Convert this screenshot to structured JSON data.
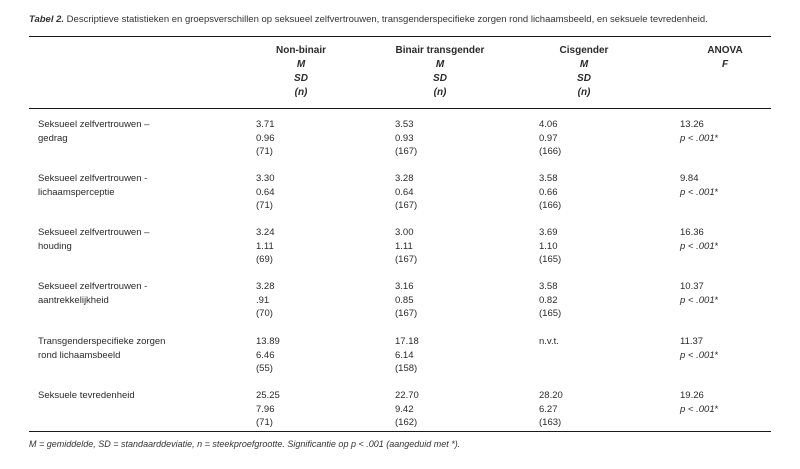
{
  "caption": {
    "label": "Tabel 2.",
    "text": " Descriptieve statistieken en groepsverschillen op seksueel zelfvertrouwen, transgenderspecifieke zorgen rond lichaamsbeeld, en seksuele tevredenheid."
  },
  "columns": [
    {
      "name": "Non-binair",
      "sub": [
        "M",
        "SD",
        "(n)"
      ]
    },
    {
      "name": "Binair transgender",
      "sub": [
        "M",
        "SD",
        "(n)"
      ]
    },
    {
      "name": "Cisgender",
      "sub": [
        "M",
        "SD",
        "(n)"
      ]
    },
    {
      "name": "ANOVA",
      "sub": [
        "F"
      ]
    }
  ],
  "rows": [
    {
      "label": [
        "Seksueel zelfvertrouwen –",
        "gedrag"
      ],
      "cells": [
        [
          "3.71",
          "0.96",
          "(71)"
        ],
        [
          "3.53",
          "0.93",
          "(167)"
        ],
        [
          "4.06",
          "0.97",
          "(166)"
        ]
      ],
      "anova": {
        "f": "13.26",
        "p": "p < .001",
        "star": "*"
      }
    },
    {
      "label": [
        "Seksueel zelfvertrouwen -",
        "lichaamsperceptie"
      ],
      "cells": [
        [
          "3.30",
          "0.64",
          "(71)"
        ],
        [
          "3.28",
          "0.64",
          "(167)"
        ],
        [
          "3.58",
          "0.66",
          "(166)"
        ]
      ],
      "anova": {
        "f": "9.84",
        "p": "p < .001",
        "star": "*"
      }
    },
    {
      "label": [
        "Seksueel zelfvertrouwen –",
        "houding"
      ],
      "cells": [
        [
          "3.24",
          "1.11",
          "(69)"
        ],
        [
          "3.00",
          "1.11",
          "(167)"
        ],
        [
          "3.69",
          "1.10",
          "(165)"
        ]
      ],
      "anova": {
        "f": "16.36",
        "p": "p < .001",
        "star": "*"
      }
    },
    {
      "label": [
        "Seksueel zelfvertrouwen -",
        "aantrekkelijkheid"
      ],
      "cells": [
        [
          "3.28",
          ".91",
          "(70)"
        ],
        [
          "3.16",
          "0.85",
          "(167)"
        ],
        [
          "3.58",
          "0.82",
          "(165)"
        ]
      ],
      "anova": {
        "f": "10.37",
        "p": "p < .001",
        "star": "*"
      }
    },
    {
      "label": [
        "Transgenderspecifieke zorgen",
        "rond lichaamsbeeld"
      ],
      "cells": [
        [
          "13.89",
          "6.46",
          "(55)"
        ],
        [
          "17.18",
          "6.14",
          "(158)"
        ],
        [
          "n.v.t."
        ]
      ],
      "anova": {
        "f": "11.37",
        "p": "p < .001",
        "star": "*"
      }
    },
    {
      "label": [
        "Seksuele tevredenheid"
      ],
      "cells": [
        [
          "25.25",
          "7.96",
          "(71)"
        ],
        [
          "22.70",
          "9.42",
          "(162)"
        ],
        [
          "28.20",
          "6.27",
          "(163)"
        ]
      ],
      "anova": {
        "f": "19.26",
        "p": "p < .001",
        "star": "*"
      }
    }
  ],
  "footnote": "M = gemiddelde, SD = standaarddeviatie, n = steekproefgrootte. Significantie op p < .001 (aangeduid met *)."
}
